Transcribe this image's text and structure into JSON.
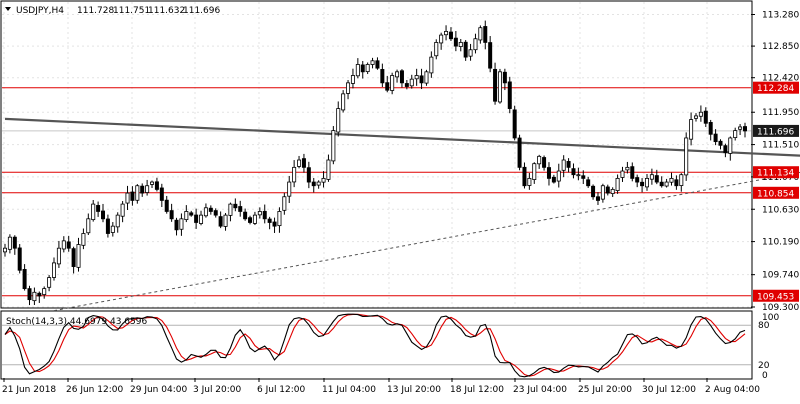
{
  "chart_data": [
    {
      "type": "candlestick",
      "symbol_label": "USDJPY,H4",
      "ohlc_readout": [
        "111.728",
        "111.751",
        "111.632",
        "111.696"
      ],
      "ylim": [
        109.3,
        113.45
      ],
      "y_ticks": [
        "113.280",
        "112.850",
        "112.420",
        "111.950",
        "111.510",
        "111.070",
        "110.630",
        "110.190",
        "109.740",
        "109.300"
      ],
      "x_ticks": [
        "21 Jun 2018",
        "26 Jun 12:00",
        "29 Jun 04:00",
        "3 Jul 20:00",
        "6 Jul 12:00",
        "11 Jul 04:00",
        "13 Jul 20:00",
        "18 Jul 12:00",
        "23 Jul 04:00",
        "25 Jul 20:00",
        "30 Jul 12:00",
        "2 Aug 04:00"
      ],
      "horizontal_levels": [
        {
          "price": 112.284,
          "label": "112.284",
          "color": "#e00000"
        },
        {
          "price": 111.134,
          "label": "111.134",
          "color": "#e00000"
        },
        {
          "price": 110.854,
          "label": "110.854",
          "color": "#e00000"
        },
        {
          "price": 109.453,
          "label": "109.453",
          "color": "#e00000"
        }
      ],
      "current_price": {
        "price": 111.696,
        "label": "111.696",
        "color": "#1a1a1a"
      },
      "trendlines": [
        {
          "style": "solid",
          "color": "#555555",
          "from": [
            0,
            111.86
          ],
          "to": [
            188,
            111.28
          ]
        },
        {
          "style": "dashed",
          "color": "#555555",
          "from": [
            10,
            109.25
          ],
          "to": [
            188,
            111.45
          ]
        }
      ],
      "closes": [
        110.1,
        110.25,
        110.1,
        109.8,
        109.55,
        109.4,
        109.5,
        109.45,
        109.55,
        109.7,
        109.9,
        110.1,
        110.2,
        110.1,
        109.85,
        110.15,
        110.3,
        110.5,
        110.7,
        110.6,
        110.5,
        110.3,
        110.4,
        110.55,
        110.7,
        110.85,
        110.75,
        110.95,
        110.85,
        110.95,
        111.0,
        110.9,
        110.75,
        110.6,
        110.5,
        110.35,
        110.5,
        110.6,
        110.55,
        110.45,
        110.55,
        110.65,
        110.6,
        110.55,
        110.4,
        110.55,
        110.7,
        110.65,
        110.6,
        110.5,
        110.45,
        110.55,
        110.6,
        110.5,
        110.45,
        110.4,
        110.6,
        110.8,
        111.0,
        111.2,
        111.3,
        111.2,
        111.0,
        110.95,
        111.0,
        111.05,
        111.3,
        111.7,
        112.0,
        112.2,
        112.35,
        112.45,
        112.6,
        112.5,
        112.6,
        112.65,
        112.55,
        112.35,
        112.25,
        112.45,
        112.5,
        112.35,
        112.3,
        112.4,
        112.45,
        112.35,
        112.5,
        112.7,
        112.9,
        113.0,
        113.05,
        112.95,
        112.85,
        112.9,
        112.7,
        112.8,
        112.95,
        113.1,
        112.9,
        112.55,
        112.1,
        112.5,
        112.35,
        112.0,
        111.6,
        111.2,
        110.95,
        111.05,
        111.25,
        111.35,
        111.2,
        111.05,
        111.0,
        111.15,
        111.3,
        111.2,
        111.1,
        111.1,
        111.05,
        110.95,
        110.8,
        110.75,
        110.95,
        110.85,
        110.9,
        111.05,
        111.15,
        111.2,
        111.05,
        111.0,
        110.95,
        111.05,
        111.1,
        111.0,
        110.95,
        111.0,
        111.05,
        110.95,
        111.1,
        111.6,
        111.85,
        111.9,
        111.95,
        111.8,
        111.65,
        111.55,
        111.5,
        111.4,
        111.6,
        111.7,
        111.75,
        111.696
      ],
      "stochastic": {
        "label": "Stoch(14,3,3) 44.6979 43.6596",
        "ylim": [
          0,
          100
        ],
        "y_ticks": [
          "100",
          "0"
        ],
        "levels": [
          "80",
          "20"
        ],
        "colors": {
          "main": "#000000",
          "signal": "#e00000"
        }
      }
    }
  ]
}
